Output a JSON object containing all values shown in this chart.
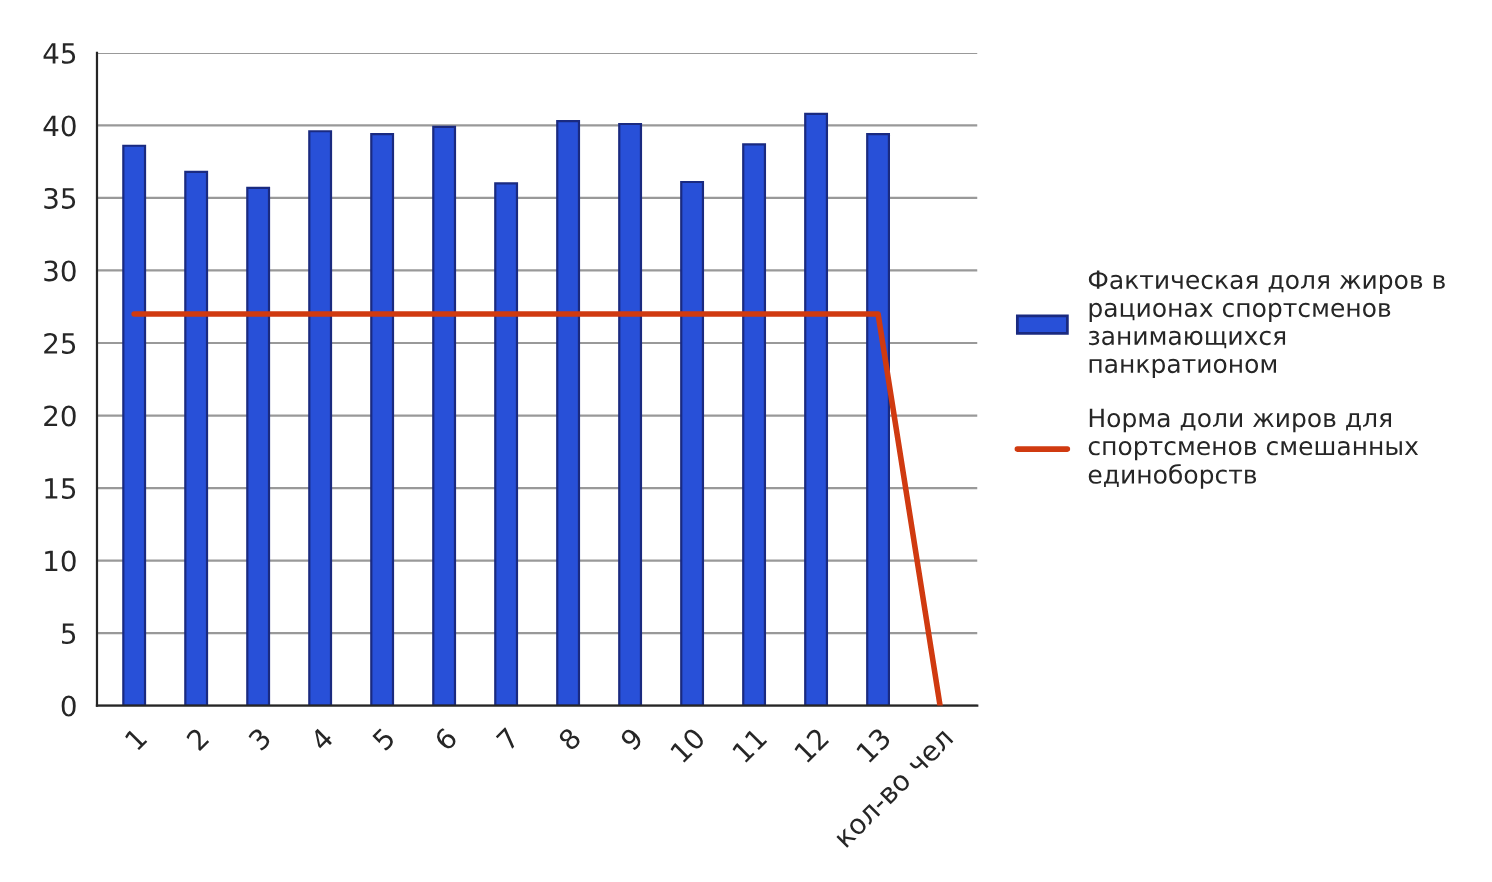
{
  "chart_data": {
    "type": "bar",
    "categories": [
      "1",
      "2",
      "3",
      "4",
      "5",
      "6",
      "7",
      "8",
      "9",
      "10",
      "11",
      "12",
      "13",
      "кол-во чел"
    ],
    "series": [
      {
        "name": "Фактическая доля жиров в рационах спортсменов занимающихся панкратионом",
        "color": "#2850d8",
        "values": [
          38.6,
          36.8,
          35.7,
          39.6,
          39.4,
          39.9,
          36.0,
          40.3,
          40.1,
          36.1,
          38.7,
          40.8,
          39.4,
          null
        ]
      },
      {
        "name": "Норма доли жиров для спортсменов смешанных единоборств",
        "type": "line",
        "color": "#d03a10",
        "values": [
          27,
          27,
          27,
          27,
          27,
          27,
          27,
          27,
          27,
          27,
          27,
          27,
          27,
          0
        ]
      }
    ],
    "ylim": [
      0,
      45
    ],
    "yticks": [
      0,
      5,
      10,
      15,
      20,
      25,
      30,
      35,
      40,
      45
    ],
    "grid": "y",
    "legend": "right",
    "marker": "none",
    "line_style": "solid"
  }
}
